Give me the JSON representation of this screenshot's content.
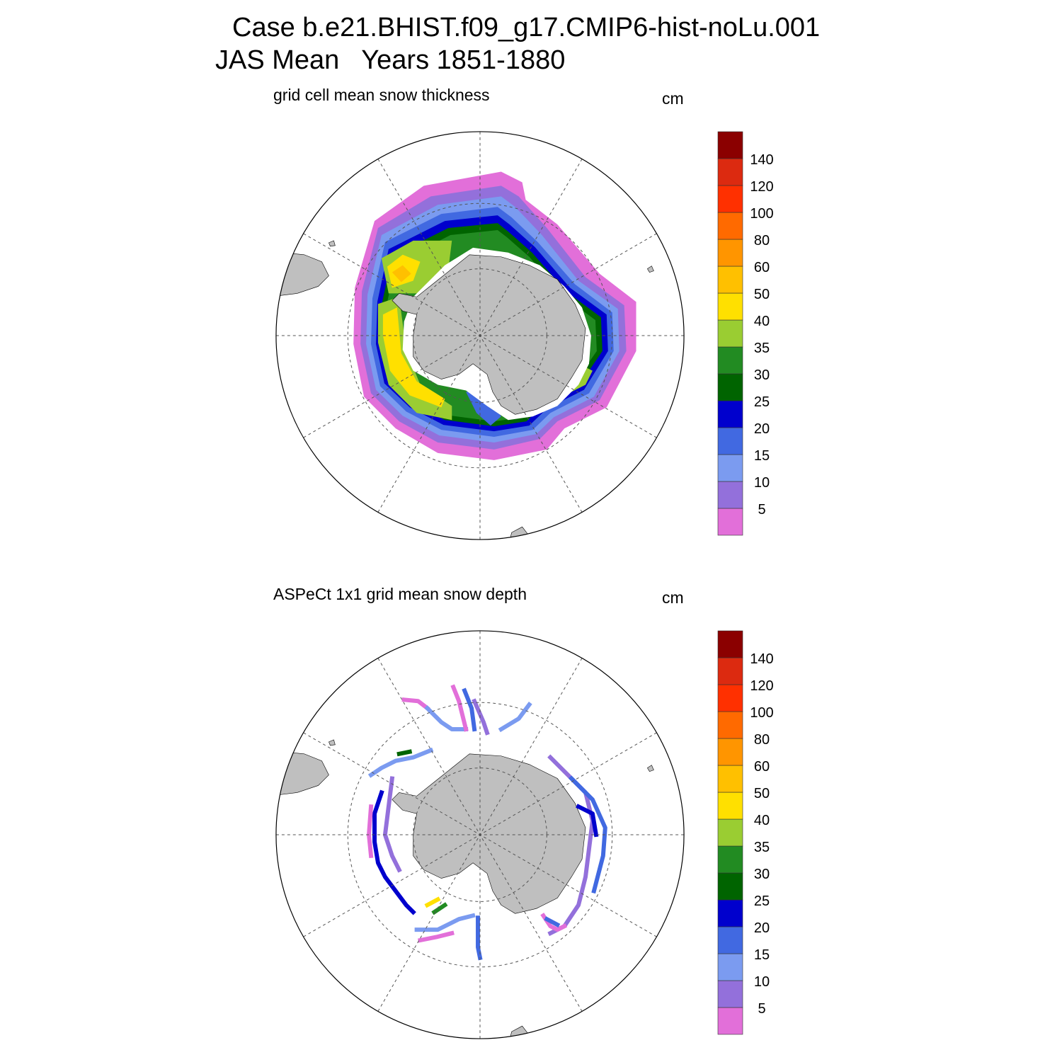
{
  "title": {
    "line1": "Case b.e21.BHIST.f09_g17.CMIP6-hist-noLu.001",
    "line2": "JAS Mean   Years 1851-1880"
  },
  "colorbar": {
    "colors": [
      "#e26fd9",
      "#9370db",
      "#7b9bf0",
      "#4169e1",
      "#0000cd",
      "#006400",
      "#228b22",
      "#9acd32",
      "#ffe000",
      "#ffc000",
      "#ff9500",
      "#ff6a00",
      "#ff3000",
      "#dc2a10",
      "#8b0000"
    ],
    "labels": [
      "5",
      "10",
      "15",
      "20",
      "25",
      "30",
      "35",
      "40",
      "50",
      "60",
      "80",
      "100",
      "120",
      "140"
    ]
  },
  "land_color": "#bfbfbf",
  "panels": [
    {
      "subtitle": "grid cell mean snow thickness",
      "units": "cm",
      "chart_data": {
        "type": "polar-stereographic-map",
        "hemisphere": "south",
        "field": "model grid cell mean snow thickness",
        "data_coverage": "continuous ring of sea ice snow around Antarctica",
        "approx_max_value_cm": 50,
        "highest_values": "Weddell Sea and Bellingshausen/Amundsen Seas (40-50 cm)",
        "levels": [
          5,
          10,
          15,
          20,
          25,
          30,
          35,
          40,
          50,
          60,
          80,
          100,
          120,
          140
        ],
        "grid": true
      }
    },
    {
      "subtitle": "ASPeCt 1x1 grid mean snow depth",
      "units": "cm",
      "chart_data": {
        "type": "polar-stereographic-map",
        "hemisphere": "south",
        "field": "ASPeCt observed snow depth on 1x1 degree grid",
        "data_coverage": "sparse ship tracks around Antarctica",
        "typical_value_range_cm": [
          0,
          20
        ],
        "levels": [
          5,
          10,
          15,
          20,
          25,
          30,
          35,
          40,
          50,
          60,
          80,
          100,
          120,
          140
        ],
        "grid": true
      }
    }
  ]
}
